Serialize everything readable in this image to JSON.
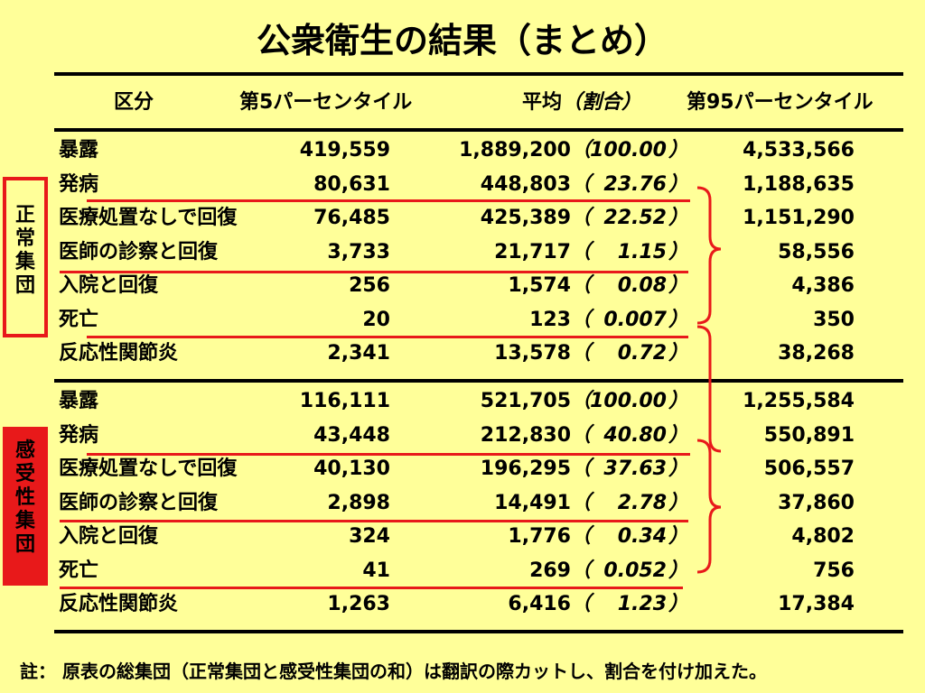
{
  "title": "公衆衛生の結果（まとめ）",
  "headers": {
    "category": "区分",
    "p5": "第5パーセンタイル",
    "avg": "平均",
    "ratio": "（割合）",
    "p95": "第95パーセンタイル"
  },
  "groups": [
    {
      "label": "正\n常\n集\n団",
      "rows": [
        {
          "label": "暴露",
          "p5": "419,559",
          "avg": "1,889,200",
          "ratio": "100.00",
          "p95": "4,533,566"
        },
        {
          "label": "発病",
          "p5": "80,631",
          "avg": "448,803",
          "ratio": "23.76",
          "p95": "1,188,635"
        },
        {
          "label": "医療処置なしで回復",
          "p5": "76,485",
          "avg": "425,389",
          "ratio": "22.52",
          "p95": "1,151,290"
        },
        {
          "label": "医師の診察と回復",
          "p5": "3,733",
          "avg": "21,717",
          "ratio": "1.15",
          "p95": "58,556"
        },
        {
          "label": "入院と回復",
          "p5": "256",
          "avg": "1,574",
          "ratio": "0.08",
          "p95": "4,386"
        },
        {
          "label": "死亡",
          "p5": "20",
          "avg": "123",
          "ratio": "0.007",
          "p95": "350"
        },
        {
          "label": "反応性関節炎",
          "p5": "2,341",
          "avg": "13,578",
          "ratio": "0.72",
          "p95": "38,268"
        }
      ]
    },
    {
      "label": "感\n受\n性\n集\n団",
      "rows": [
        {
          "label": "暴露",
          "p5": "116,111",
          "avg": "521,705",
          "ratio": "100.00",
          "p95": "1,255,584"
        },
        {
          "label": "発病",
          "p5": "43,448",
          "avg": "212,830",
          "ratio": "40.80",
          "p95": "550,891"
        },
        {
          "label": "医療処置なしで回復",
          "p5": "40,130",
          "avg": "196,295",
          "ratio": "37.63",
          "p95": "506,557"
        },
        {
          "label": "医師の診察と回復",
          "p5": "2,898",
          "avg": "14,491",
          "ratio": "2.78",
          "p95": "37,860"
        },
        {
          "label": "入院と回復",
          "p5": "324",
          "avg": "1,776",
          "ratio": "0.34",
          "p95": "4,802"
        },
        {
          "label": "死亡",
          "p5": "41",
          "avg": "269",
          "ratio": "0.052",
          "p95": "756"
        },
        {
          "label": "反応性関節炎",
          "p5": "1,263",
          "avg": "6,416",
          "ratio": "1.23",
          "p95": "17,384"
        }
      ]
    }
  ],
  "ratio_parens": {
    "open": "（",
    "close": "）"
  },
  "footnote": "註：  原表の総集団（正常集団と感受性集団の和）は翻訳の際カットし、割合を付け加えた。",
  "colors": {
    "background": "#FFFF99",
    "accent": "#E8191A"
  }
}
